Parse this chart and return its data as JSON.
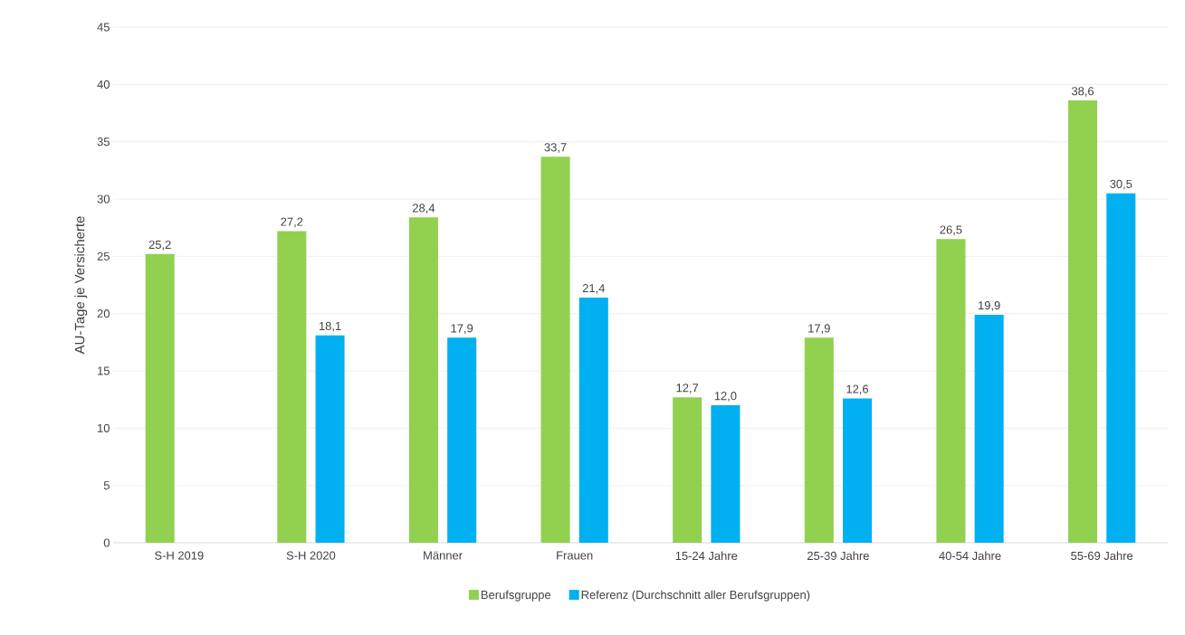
{
  "chart_data": {
    "type": "bar",
    "ylabel": "AU-Tage je Versicherte",
    "categories": [
      "S-H 2019",
      "S-H 2020",
      "Männer",
      "Frauen",
      "15-24 Jahre",
      "25-39 Jahre",
      "40-54 Jahre",
      "55-69 Jahre"
    ],
    "series": [
      {
        "name": "Berufsgruppe",
        "color": "#92d050",
        "values": [
          25.2,
          27.2,
          28.4,
          33.7,
          12.7,
          17.9,
          26.5,
          38.6
        ],
        "value_labels": [
          "25,2",
          "27,2",
          "28,4",
          "33,7",
          "12,7",
          "17,9",
          "26,5",
          "38,6"
        ]
      },
      {
        "name": "Referenz (Durchschnitt aller Berufsgruppen)",
        "color": "#00b0f0",
        "values": [
          null,
          18.1,
          17.9,
          21.4,
          12.0,
          12.6,
          19.9,
          30.5
        ],
        "value_labels": [
          null,
          "18,1",
          "17,9",
          "21,4",
          "12,0",
          "12,6",
          "19,9",
          "30,5"
        ]
      }
    ],
    "ylim": [
      0,
      45
    ],
    "yticks": [
      0,
      5,
      10,
      15,
      20,
      25,
      30,
      35,
      40,
      45
    ],
    "grid": "y",
    "legend": "bottom"
  }
}
